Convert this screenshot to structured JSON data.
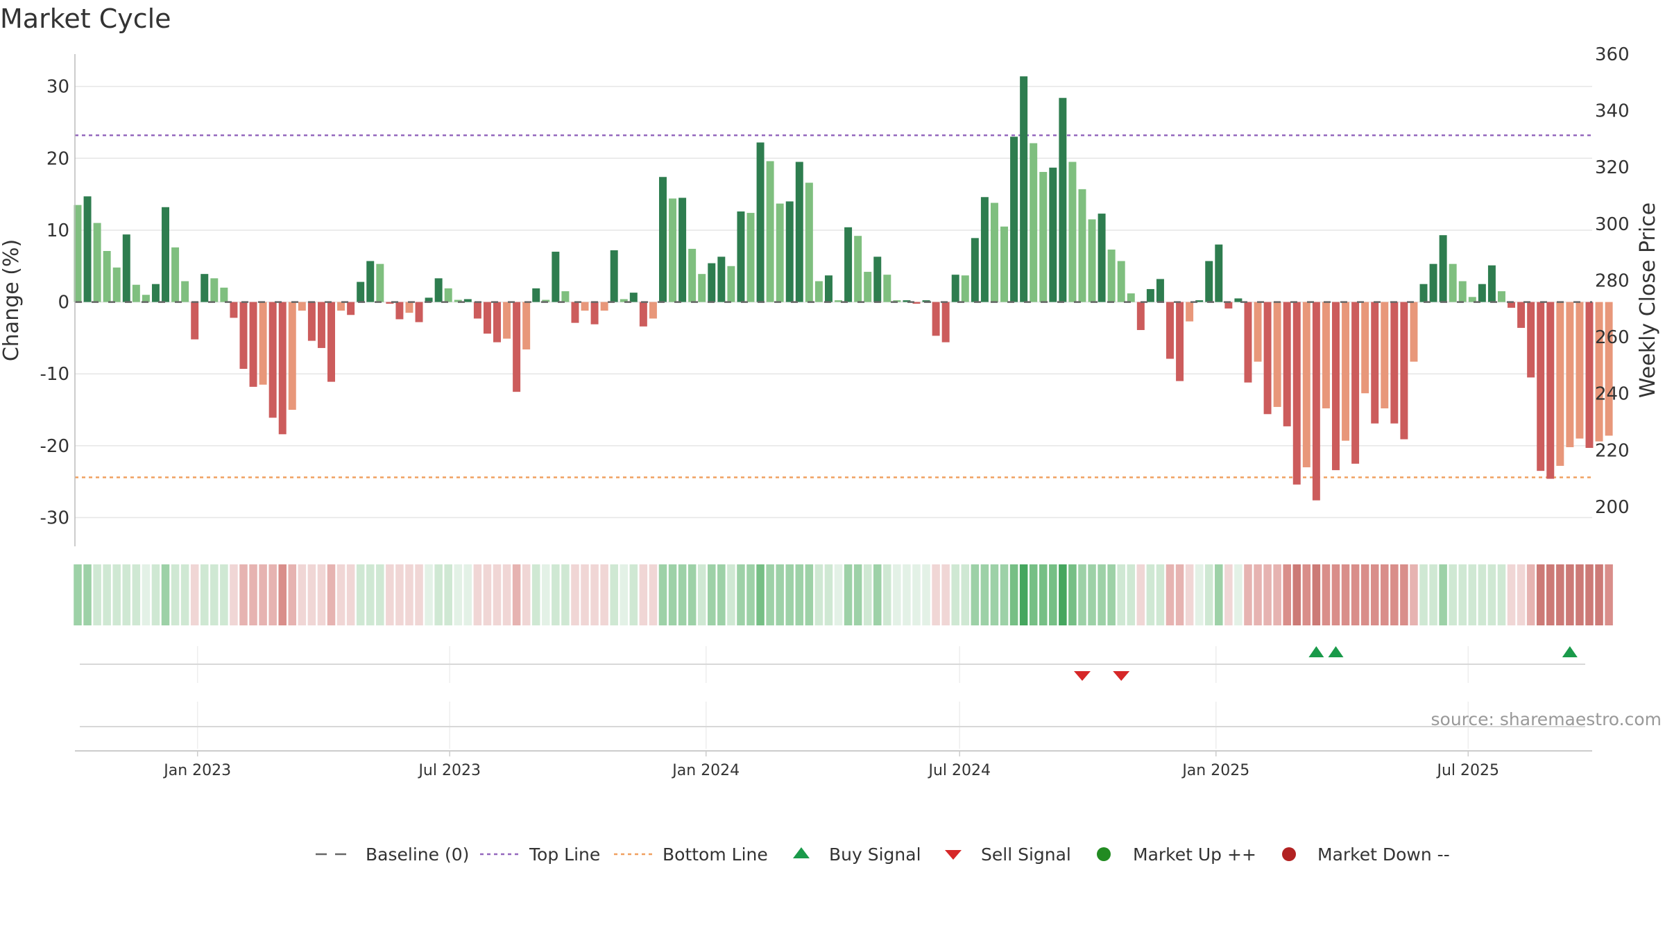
{
  "title": "Market Cycle",
  "source": "source: sharemaestro.com",
  "chart_data": {
    "type": "bar",
    "title": "Market Cycle",
    "ylabel": "Change (%)",
    "y2label": "Weekly Close Price",
    "ylim": [
      -34,
      34.5
    ],
    "y2lim": [
      186,
      360
    ],
    "yticks": [
      30,
      20,
      10,
      0,
      -10,
      -20,
      -30
    ],
    "y2ticks": [
      360,
      340,
      320,
      300,
      280,
      260,
      240,
      220,
      200
    ],
    "grid": true,
    "x_start": "2022-10-07",
    "x_step_days": 7,
    "x_end": "2025-09-26",
    "xticks": [
      {
        "label": "Jan 2023",
        "date": "2023-01-01"
      },
      {
        "label": "Jul 2023",
        "date": "2023-07-01"
      },
      {
        "label": "Jan 2024",
        "date": "2024-01-01"
      },
      {
        "label": "Jul 2024",
        "date": "2024-07-01"
      },
      {
        "label": "Jan 2025",
        "date": "2025-01-01"
      },
      {
        "label": "Jul 2025",
        "date": "2025-07-01"
      }
    ],
    "series": [
      {
        "name": "Change (%)",
        "values": [
          13.5,
          14.7,
          11,
          7.1,
          4.8,
          9.4,
          2.4,
          1,
          2.5,
          13.2,
          7.6,
          2.9,
          -5.2,
          3.9,
          3.3,
          2,
          -2.2,
          -9.3,
          -11.8,
          -11.5,
          -16.1,
          -18.4,
          -15,
          -1.2,
          -5.4,
          -6.4,
          -11.1,
          -1.2,
          -1.8,
          2.8,
          5.7,
          5.3,
          -0.2,
          -2.4,
          -1.5,
          -2.8,
          0.6,
          3.3,
          1.9,
          0.3,
          0.4,
          -2.3,
          -4.4,
          -5.6,
          -5.1,
          -12.5,
          -6.6,
          1.9,
          0.3,
          7,
          1.5,
          -2.9,
          -1.2,
          -3.1,
          -1.2,
          7.2,
          0.4,
          1.3,
          -3.4,
          -2.3,
          17.4,
          14.4,
          14.5,
          7.4,
          3.9,
          5.4,
          6.3,
          5,
          12.6,
          12.4,
          22.2,
          19.6,
          13.7,
          14,
          19.5,
          16.6,
          2.9,
          3.7,
          0.2,
          10.4,
          9.2,
          4.2,
          6.3,
          3.8,
          0.1,
          0.1,
          -0.1,
          0,
          -4.7,
          -5.6,
          3.8,
          3.7,
          8.9,
          14.6,
          13.8,
          10.5,
          23,
          31.4,
          22.1,
          18.1,
          18.7,
          28.4,
          19.5,
          15.7,
          11.5,
          12.3,
          7.3,
          5.7,
          1.2,
          -3.9,
          1.8,
          3.2,
          -7.9,
          -11,
          -2.7,
          0.2,
          5.7,
          8,
          -0.9,
          0.5,
          -11.2,
          -8.3,
          -15.6,
          -14.6,
          -17.3,
          -25.4,
          -23,
          -27.6,
          -14.8,
          -23.4,
          -19.3,
          -22.5,
          -12.7,
          -16.9,
          -14.8,
          -16.9,
          -19.1,
          -8.3,
          2.5,
          5.3,
          9.3,
          5.3,
          2.9,
          0.7,
          2.5,
          5.1,
          1.5,
          -0.8,
          -3.6,
          -10.5,
          -23.5,
          -24.6,
          -22.8,
          -20.2,
          -19,
          -20.3,
          -19.4,
          -18.6
        ]
      }
    ],
    "strip_levels": [
      2,
      2,
      1,
      1,
      1,
      1,
      1,
      0,
      1,
      2,
      1,
      1,
      -1,
      1,
      1,
      1,
      -1,
      -2,
      -2,
      -2,
      -2,
      -3,
      -2,
      -1,
      -1,
      -1,
      -2,
      -1,
      -1,
      1,
      1,
      1,
      -1,
      -1,
      -1,
      -1,
      0,
      1,
      1,
      0,
      0,
      -1,
      -1,
      -1,
      -1,
      -2,
      -1,
      1,
      0,
      1,
      1,
      -1,
      -1,
      -1,
      -1,
      1,
      0,
      1,
      -1,
      -1,
      2,
      2,
      2,
      2,
      1,
      2,
      2,
      1,
      2,
      2,
      3,
      2,
      2,
      2,
      2,
      2,
      1,
      1,
      0,
      2,
      2,
      1,
      2,
      1,
      0,
      0,
      0,
      0,
      -1,
      -1,
      1,
      1,
      2,
      2,
      2,
      2,
      3,
      4,
      3,
      3,
      3,
      4,
      3,
      2,
      2,
      2,
      2,
      1,
      1,
      -1,
      1,
      1,
      -2,
      -2,
      -1,
      0,
      1,
      2,
      -1,
      0,
      -2,
      -2,
      -2,
      -2,
      -3,
      -4,
      -3,
      -4,
      -3,
      -3,
      -3,
      -3,
      -3,
      -3,
      -3,
      -3,
      -3,
      -2,
      1,
      1,
      2,
      1,
      1,
      1,
      1,
      1,
      1,
      -1,
      -1,
      -2,
      -4,
      -4,
      -4,
      -4,
      -4,
      -4,
      -4,
      -3
    ],
    "buy_signals": [
      127,
      129,
      153
    ],
    "sell_signals": [
      103,
      107
    ],
    "top_line": 23.2,
    "bottom_line": -24.4,
    "baseline": 0,
    "legend_position": "bottom-center",
    "legend": [
      {
        "label": "Baseline (0)",
        "symbol": "dash"
      },
      {
        "label": "Top Line",
        "symbol": "dotted"
      },
      {
        "label": "Bottom Line",
        "symbol": "dotted"
      },
      {
        "label": "Buy Signal",
        "symbol": "triangle-up"
      },
      {
        "label": "Sell Signal",
        "symbol": "triangle-down"
      },
      {
        "label": "Market Up ++",
        "symbol": "circle"
      },
      {
        "label": "Market Down --",
        "symbol": "circle"
      }
    ]
  },
  "colors": {
    "up_strong": "#2e7d4f",
    "up_light": "#7fbf7f",
    "down_strong": "#cc5c5c",
    "down_light": "#e8977a",
    "top_line": "#9467bd",
    "bottom_line": "#f0a060",
    "baseline": "#666666",
    "buy": "#1a9a4a",
    "sell": "#d62728",
    "market_up": "#228b22",
    "market_down": "#b22222",
    "grid": "#e6e6e6"
  }
}
